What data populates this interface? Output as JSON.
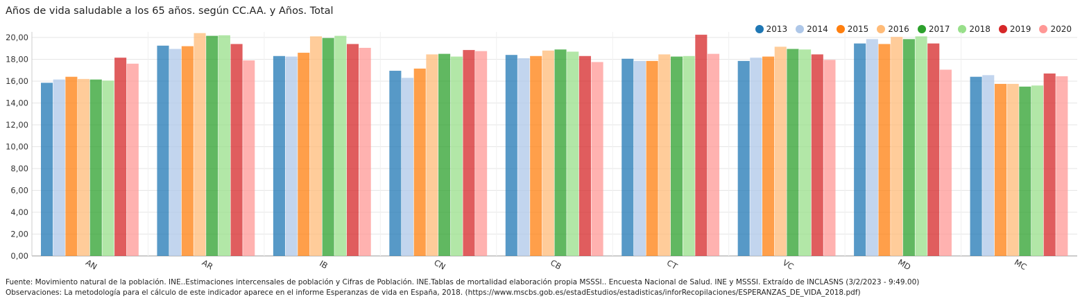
{
  "chart_data": {
    "type": "bar",
    "title": "Años de vida saludable a los 65 años. según CC.AA. y Años. Total",
    "xlabel": "",
    "ylabel": "",
    "ylim": [
      0,
      21
    ],
    "yticks": [
      "0,00",
      "2,00",
      "4,00",
      "6,00",
      "8,00",
      "10,00",
      "12,00",
      "14,00",
      "16,00",
      "18,00",
      "20,00"
    ],
    "ytick_values": [
      0,
      2,
      4,
      6,
      8,
      10,
      12,
      14,
      16,
      18,
      20
    ],
    "grid": "horizontal",
    "legend_position": "top-right",
    "categories": [
      "AN",
      "AR",
      "IB",
      "CN",
      "CB",
      "CT",
      "VC",
      "MD",
      "MC"
    ],
    "series": [
      {
        "name": "2013",
        "color": "#1f77b4",
        "values": [
          15.85,
          19.25,
          18.3,
          16.95,
          18.4,
          18.05,
          17.85,
          19.45,
          16.4
        ]
      },
      {
        "name": "2014",
        "color": "#aec7e8",
        "values": [
          16.15,
          18.95,
          18.25,
          16.3,
          18.1,
          17.85,
          18.15,
          19.85,
          16.55
        ]
      },
      {
        "name": "2015",
        "color": "#ff7f0e",
        "values": [
          16.4,
          19.2,
          18.6,
          17.15,
          18.3,
          17.85,
          18.25,
          19.4,
          15.75
        ]
      },
      {
        "name": "2016",
        "color": "#ffbb78",
        "values": [
          16.2,
          20.4,
          20.1,
          18.45,
          18.8,
          18.45,
          19.15,
          20.05,
          15.75
        ]
      },
      {
        "name": "2017",
        "color": "#2ca02c",
        "values": [
          16.15,
          20.15,
          19.95,
          18.5,
          18.9,
          18.25,
          18.95,
          19.85,
          15.5
        ]
      },
      {
        "name": "2018",
        "color": "#98df8a",
        "values": [
          16.05,
          20.2,
          20.15,
          18.25,
          18.7,
          18.3,
          18.9,
          20.1,
          15.6
        ]
      },
      {
        "name": "2019",
        "color": "#d62728",
        "values": [
          18.15,
          19.4,
          19.4,
          18.85,
          18.3,
          20.25,
          18.45,
          19.45,
          16.7
        ]
      },
      {
        "name": "2020",
        "color": "#ff9896",
        "values": [
          17.6,
          17.9,
          19.05,
          18.75,
          17.75,
          18.5,
          17.95,
          17.05,
          16.45
        ]
      }
    ]
  },
  "footer": {
    "source": "Fuente: Movimiento natural de la población. INE..Estimaciones intercensales de población y Cifras de Población. INE.Tablas de mortalidad elaboración propia MSSSI.. Encuesta Nacional de Salud. INE y MSSSI. Extraído de INCLASNS (3/2/2023 - 9:49.00)",
    "notes": "Observaciones: La metodología para el cálculo de este indicador aparece en el informe Esperanzas de vida en España, 2018. (https://www.mscbs.gob.es/estadEstudios/estadisticas/inforRecopilaciones/ESPERANZAS_DE_VIDA_2018.pdf)"
  }
}
